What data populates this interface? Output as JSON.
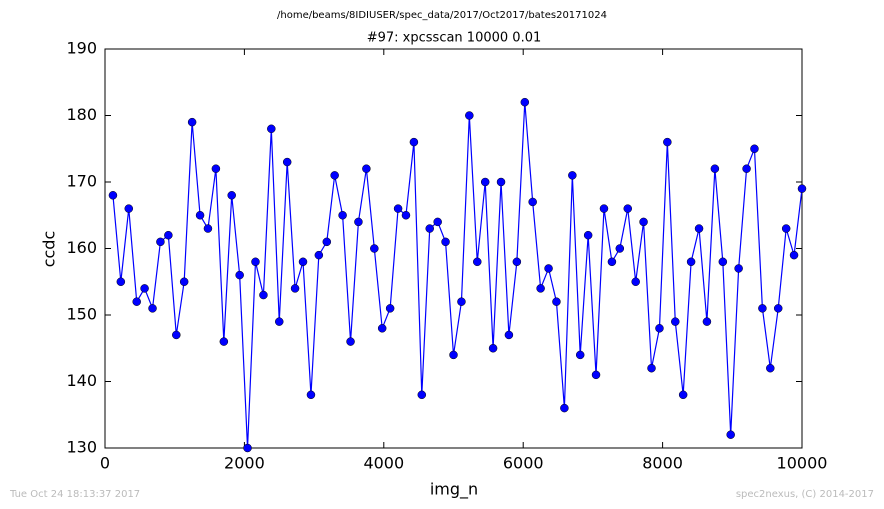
{
  "chart_data": {
    "type": "line",
    "suptitle": "/home/beams/8IDIUSER/spec_data/2017/Oct2017/bates20171024",
    "title": "#97: xpcsscan 10000 0.01",
    "x_label": "img_n",
    "y_label": "ccdc",
    "footer_left": "Tue Oct 24 18:13:37 2017",
    "footer_right": "spec2nexus, (C) 2014-2017",
    "x": [
      114,
      227,
      341,
      455,
      568,
      682,
      795,
      909,
      1023,
      1136,
      1250,
      1364,
      1477,
      1591,
      1705,
      1818,
      1932,
      2045,
      2159,
      2273,
      2386,
      2500,
      2614,
      2727,
      2841,
      2955,
      3068,
      3182,
      3295,
      3409,
      3523,
      3636,
      3750,
      3864,
      3977,
      4091,
      4205,
      4318,
      4432,
      4545,
      4659,
      4773,
      4886,
      5000,
      5114,
      5227,
      5341,
      5455,
      5568,
      5682,
      5795,
      5909,
      6023,
      6136,
      6250,
      6364,
      6477,
      6591,
      6705,
      6818,
      6932,
      7045,
      7159,
      7273,
      7386,
      7500,
      7614,
      7727,
      7841,
      7955,
      8068,
      8182,
      8295,
      8409,
      8523,
      8636,
      8750,
      8864,
      8977,
      9091,
      9205,
      9318,
      9432,
      9545,
      9659,
      9773,
      9886,
      10000
    ],
    "series": [
      {
        "name": "ccdc",
        "color": "#0000ff",
        "values": [
          168,
          155,
          166,
          152,
          154,
          151,
          161,
          162,
          147,
          155,
          179,
          165,
          163,
          172,
          146,
          168,
          156,
          130,
          158,
          153,
          178,
          149,
          173,
          154,
          158,
          138,
          159,
          161,
          171,
          165,
          146,
          164,
          172,
          160,
          148,
          151,
          166,
          165,
          176,
          138,
          163,
          164,
          161,
          144,
          152,
          180,
          158,
          170,
          145,
          170,
          147,
          158,
          182,
          167,
          154,
          157,
          152,
          136,
          171,
          144,
          162,
          141,
          166,
          158,
          160,
          166,
          155,
          164,
          142,
          148,
          176,
          149,
          138,
          158,
          163,
          149,
          172,
          158,
          132,
          157,
          172,
          175,
          151,
          142,
          151,
          163,
          159,
          169
        ]
      }
    ],
    "xlim": [
      0,
      10000
    ],
    "xticks": [
      0,
      2000,
      4000,
      6000,
      8000,
      10000
    ],
    "ylim": [
      130,
      190
    ],
    "yticks": [
      130,
      140,
      150,
      160,
      170,
      180,
      190
    ]
  }
}
